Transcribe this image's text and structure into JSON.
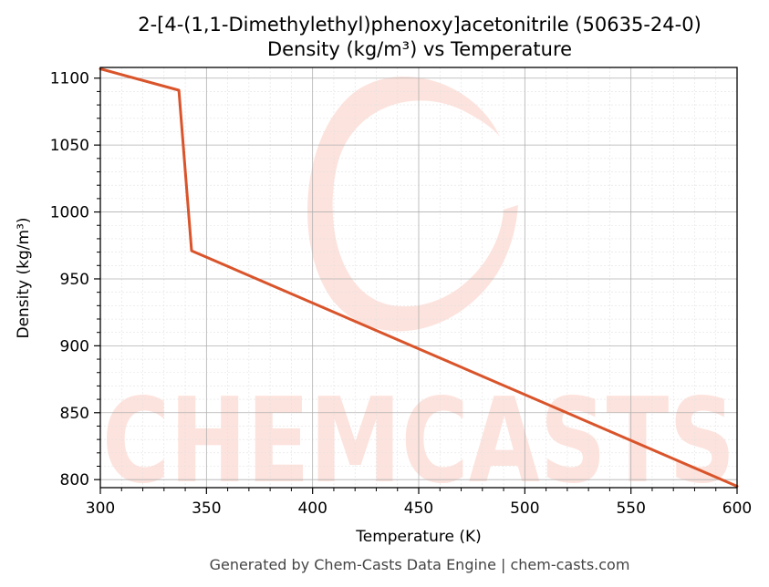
{
  "chart_data": {
    "type": "line",
    "title": "2-[4-(1,1-Dimethylethyl)phenoxy]acetonitrile (50635-24-0)",
    "subtitle": "Density (kg/m³) vs Temperature",
    "xlabel": "Temperature (K)",
    "ylabel": "Density (kg/m³)",
    "xlim": [
      300,
      600
    ],
    "ylim": [
      794,
      1108
    ],
    "xticks": [
      300,
      350,
      400,
      450,
      500,
      550,
      600
    ],
    "yticks": [
      800,
      850,
      900,
      950,
      1000,
      1050,
      1100
    ],
    "grid": true,
    "series": [
      {
        "color": "#d9542b",
        "x": [
          300,
          337,
          343,
          600
        ],
        "y": [
          1107,
          1091,
          971,
          795
        ]
      }
    ]
  },
  "watermark": {
    "text": "CHEMCASTS",
    "color": "#fde3dd"
  },
  "footer": "Generated by Chem-Casts Data Engine | chem-casts.com"
}
